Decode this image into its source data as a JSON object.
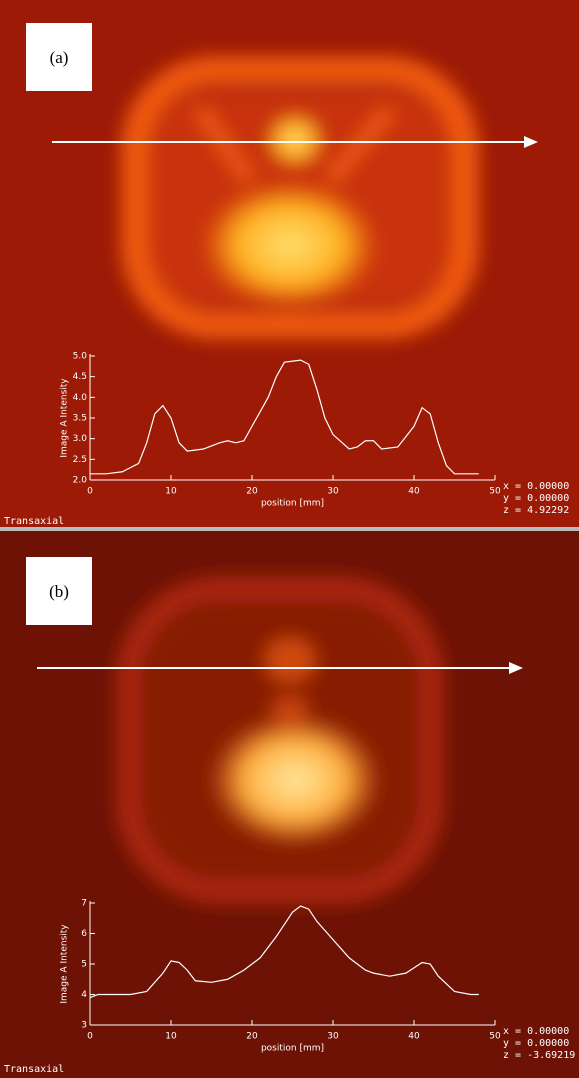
{
  "chart_data": [
    {
      "type": "line",
      "panel_label": "(a)",
      "footer": "Transaxial",
      "xlabel": "position [mm]",
      "ylabel": "Image A Intensity",
      "annotations": [
        "x = 0.00000",
        "y = 0.00000",
        "z = 4.92292"
      ],
      "x": [
        0,
        2,
        4,
        6,
        7,
        8,
        9,
        10,
        11,
        12,
        14,
        16,
        17,
        18,
        19,
        20,
        22,
        23,
        24,
        26,
        27,
        28,
        29,
        30,
        32,
        33,
        34,
        35,
        36,
        38,
        40,
        41,
        42,
        43,
        44,
        45,
        48
      ],
      "series": [
        {
          "color": "#ffffff",
          "values": [
            2.15,
            2.15,
            2.2,
            2.4,
            2.9,
            3.6,
            3.8,
            3.5,
            2.9,
            2.7,
            2.75,
            2.9,
            2.95,
            2.9,
            2.95,
            3.3,
            4.0,
            4.5,
            4.85,
            4.9,
            4.8,
            4.2,
            3.5,
            3.1,
            2.75,
            2.8,
            2.95,
            2.95,
            2.75,
            2.8,
            3.3,
            3.75,
            3.6,
            2.9,
            2.35,
            2.15,
            2.15
          ]
        }
      ],
      "xlim": [
        0,
        50
      ],
      "xticks": [
        0,
        10,
        20,
        30,
        40,
        50
      ],
      "ylim": [
        2,
        5
      ],
      "yticks": [
        {
          "value": 2,
          "label": "2.0"
        },
        2.5,
        {
          "value": 3,
          "label": "3.0"
        },
        3.5,
        {
          "value": 4,
          "label": "4.0"
        },
        4.5,
        {
          "value": 5,
          "label": "5.0"
        }
      ]
    },
    {
      "type": "line",
      "panel_label": "(b)",
      "footer": "Transaxial",
      "xlabel": "position [mm]",
      "ylabel": "Image A Intensity",
      "annotations": [
        "x = 0.00000",
        "y = 0.00000",
        "z = -3.69219"
      ],
      "x": [
        0,
        1,
        3,
        5,
        7,
        9,
        10,
        11,
        12,
        13,
        15,
        17,
        19,
        21,
        23,
        25,
        26,
        27,
        28,
        30,
        32,
        34,
        35,
        37,
        39,
        41,
        42,
        43,
        45,
        47,
        48
      ],
      "series": [
        {
          "color": "#ffffff",
          "values": [
            3.9,
            4.0,
            4.0,
            4.0,
            4.1,
            4.7,
            5.1,
            5.05,
            4.8,
            4.45,
            4.4,
            4.5,
            4.8,
            5.2,
            5.9,
            6.7,
            6.9,
            6.8,
            6.4,
            5.8,
            5.2,
            4.8,
            4.7,
            4.6,
            4.7,
            5.05,
            5.0,
            4.6,
            4.1,
            4.0,
            4.0
          ]
        }
      ],
      "xlim": [
        0,
        50
      ],
      "xticks": [
        0,
        10,
        20,
        30,
        40,
        50
      ],
      "ylim": [
        3,
        7
      ],
      "yticks": [
        3,
        4,
        5,
        6,
        7
      ]
    }
  ]
}
